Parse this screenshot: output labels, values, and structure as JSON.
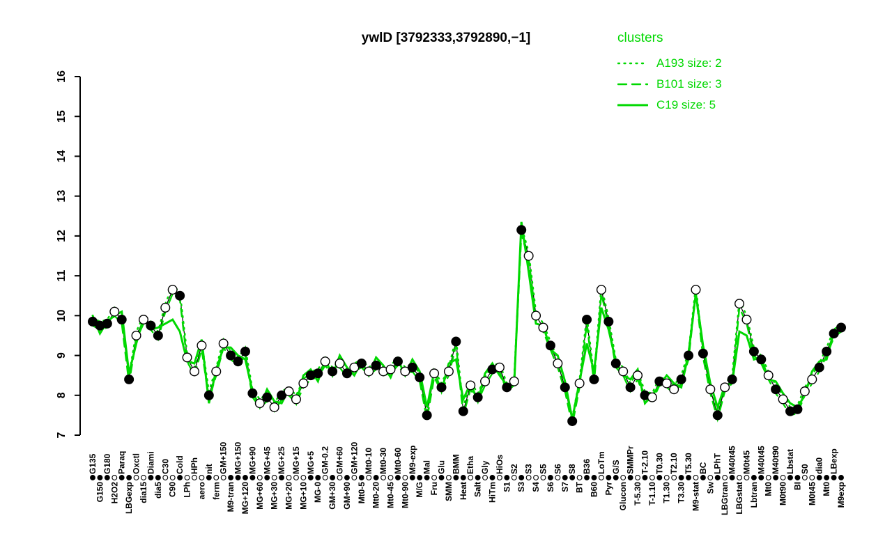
{
  "title": "ywlD [3792333,3792890,−1]",
  "legend": {
    "title": "clusters"
  },
  "colors": {
    "cluster_green": "#00d800",
    "series_black": "#000000",
    "background": "#ffffff"
  },
  "chart_data": {
    "type": "line",
    "title": "ywlD [3792333,3792890,−1]",
    "xlabel": "",
    "ylabel": "",
    "ylim": [
      7,
      16
    ],
    "yticks": [
      7,
      8,
      9,
      10,
      11,
      12,
      13,
      14,
      15,
      16
    ],
    "grid": false,
    "legend_position": "top-right",
    "categories": [
      "G135",
      "G150",
      "G180",
      "H2O2",
      "Paraq",
      "LBGexp",
      "Oxctl",
      "dia15",
      "Diami",
      "dia5",
      "C30",
      "C90",
      "Cold",
      "LPh",
      "HPh",
      "aero",
      "nit",
      "ferm",
      "GM+150",
      "M9-tran",
      "MG+150",
      "MG+120",
      "MG+90",
      "MG+60",
      "MG+45",
      "MG+30",
      "MG+25",
      "MG+20",
      "MG+15",
      "MG+10",
      "MG+5",
      "MG-0",
      "GM-0.2",
      "GM+30",
      "GM+60",
      "GM+90",
      "GM+120",
      "Mt0-5",
      "Mt0-10",
      "Mt0-20",
      "Mt0-30",
      "Mt0-45",
      "Mt0-60",
      "Mt0-90",
      "M9-exp",
      "M/G",
      "Mal",
      "Fru",
      "Glu",
      "SMM",
      "BMM",
      "Heat",
      "Etha",
      "Salt",
      "Gly",
      "HiTm",
      "HiOs",
      "S1",
      "S2",
      "S3",
      "S3",
      "S4",
      "S5",
      "S6",
      "S6",
      "S7",
      "S8",
      "BT",
      "B36",
      "B60",
      "LoTm",
      "Pyr",
      "G/S",
      "Glucon",
      "SMMPr",
      "T-5.30",
      "T-2.10",
      "T-1.10",
      "T0.30",
      "T1.30",
      "T2.10",
      "T3.30",
      "T5.30",
      "M9-stat",
      "BC",
      "Sw",
      "LPhT",
      "LBGtran",
      "M40t45",
      "LBGstat",
      "M0t45",
      "Lbtran",
      "M40t45",
      "Mt0",
      "M40t90",
      "M0t90",
      "Lbstat",
      "BI",
      "S0",
      "M0t45",
      "dia0",
      "Mt0",
      "LBexp",
      "M9exp"
    ],
    "marker_filled": [
      1,
      1,
      1,
      0,
      1,
      1,
      0,
      0,
      1,
      1,
      0,
      0,
      1,
      0,
      0,
      0,
      1,
      0,
      0,
      1,
      1,
      1,
      1,
      0,
      1,
      0,
      1,
      0,
      0,
      0,
      1,
      1,
      0,
      1,
      0,
      1,
      0,
      1,
      0,
      1,
      0,
      0,
      1,
      0,
      1,
      1,
      1,
      0,
      1,
      0,
      1,
      1,
      0,
      1,
      0,
      1,
      0,
      1,
      0,
      1,
      0,
      0,
      0,
      1,
      0,
      1,
      1,
      0,
      1,
      1,
      0,
      1,
      1,
      0,
      1,
      0,
      1,
      0,
      1,
      0,
      0,
      1,
      1,
      0,
      1,
      0,
      1,
      0,
      1,
      0,
      0,
      1,
      1,
      0,
      1,
      0,
      1,
      1,
      0,
      0,
      1,
      1,
      1,
      1
    ],
    "series": [
      {
        "name": "ywlD",
        "role": "gene-profile",
        "color": "#000000",
        "line": "solid",
        "marker": "circle",
        "values": [
          9.85,
          9.75,
          9.8,
          10.1,
          9.9,
          8.4,
          9.5,
          9.9,
          9.75,
          9.5,
          10.2,
          10.65,
          10.5,
          8.95,
          8.6,
          9.25,
          8.0,
          8.6,
          9.3,
          9.0,
          8.85,
          9.1,
          8.05,
          7.8,
          7.95,
          7.7,
          8.0,
          8.1,
          7.9,
          8.3,
          8.5,
          8.55,
          8.85,
          8.6,
          8.8,
          8.55,
          8.7,
          8.8,
          8.6,
          8.75,
          8.6,
          8.65,
          8.85,
          8.6,
          8.7,
          8.45,
          7.5,
          8.55,
          8.2,
          8.6,
          9.35,
          7.6,
          8.25,
          7.95,
          8.35,
          8.65,
          8.7,
          8.2,
          8.35,
          12.15,
          11.5,
          10.0,
          9.7,
          9.25,
          8.8,
          8.2,
          7.35,
          8.3,
          9.9,
          8.4,
          10.65,
          9.85,
          8.8,
          8.6,
          8.2,
          8.5,
          8.0,
          7.95,
          8.35,
          8.3,
          8.15,
          8.4,
          9.0,
          10.65,
          9.05,
          8.15,
          7.5,
          8.2,
          8.4,
          10.3,
          9.9,
          9.1,
          8.9,
          8.5,
          8.15,
          7.9,
          7.6,
          7.65,
          8.1,
          8.4,
          8.7,
          9.1,
          9.55,
          9.7
        ]
      },
      {
        "name": "A193 size: 2",
        "cluster": "A193",
        "size": 2,
        "color": "#00d800",
        "line": "dotted",
        "values": [
          9.95,
          9.85,
          9.9,
          10.2,
          10.0,
          8.5,
          9.6,
          10.0,
          9.85,
          9.6,
          10.3,
          10.75,
          10.6,
          9.05,
          8.7,
          9.35,
          8.1,
          8.7,
          9.4,
          9.1,
          8.95,
          9.2,
          8.15,
          7.9,
          8.05,
          7.8,
          8.1,
          8.2,
          8.0,
          8.4,
          8.6,
          8.65,
          8.95,
          8.7,
          8.9,
          8.65,
          8.8,
          8.9,
          8.7,
          8.85,
          8.7,
          8.75,
          8.95,
          8.7,
          8.8,
          8.55,
          7.6,
          8.65,
          8.3,
          8.7,
          9.45,
          7.7,
          8.35,
          8.05,
          8.45,
          8.75,
          8.8,
          8.3,
          8.45,
          12.25,
          11.6,
          10.1,
          9.8,
          9.35,
          8.9,
          8.3,
          7.45,
          8.4,
          10.0,
          8.5,
          10.75,
          9.95,
          8.9,
          8.7,
          8.3,
          8.6,
          8.1,
          8.05,
          8.45,
          8.4,
          8.25,
          8.5,
          9.1,
          10.75,
          9.15,
          8.25,
          7.6,
          8.3,
          8.5,
          10.4,
          10.0,
          9.2,
          9.0,
          8.6,
          8.25,
          8.0,
          7.7,
          7.75,
          8.2,
          8.5,
          8.8,
          9.2,
          9.65,
          9.8
        ]
      },
      {
        "name": "B101 size: 3",
        "cluster": "B101",
        "size": 3,
        "color": "#00d800",
        "line": "dashed",
        "values": [
          9.75,
          9.65,
          9.7,
          10.0,
          9.8,
          8.3,
          9.4,
          9.8,
          9.65,
          9.4,
          10.1,
          10.55,
          10.4,
          8.85,
          8.5,
          9.15,
          7.9,
          8.5,
          9.2,
          8.9,
          8.75,
          9.0,
          7.95,
          7.7,
          7.85,
          7.6,
          7.9,
          8.0,
          7.8,
          8.2,
          8.4,
          8.45,
          8.75,
          8.5,
          8.7,
          8.45,
          8.6,
          8.7,
          8.5,
          8.65,
          8.5,
          8.55,
          8.75,
          8.5,
          8.6,
          8.35,
          7.4,
          8.45,
          8.1,
          8.5,
          9.25,
          7.5,
          8.15,
          7.85,
          8.25,
          8.55,
          8.6,
          8.1,
          8.25,
          12.05,
          11.4,
          9.9,
          9.6,
          9.15,
          8.7,
          8.1,
          7.25,
          8.2,
          9.8,
          8.3,
          10.55,
          9.75,
          8.7,
          8.5,
          8.1,
          8.4,
          7.9,
          7.85,
          8.25,
          8.2,
          8.05,
          8.3,
          8.9,
          10.55,
          8.95,
          8.05,
          7.4,
          8.1,
          8.3,
          10.2,
          9.8,
          9.0,
          8.8,
          8.4,
          8.05,
          7.8,
          7.5,
          7.55,
          8.0,
          8.3,
          8.6,
          9.0,
          9.45,
          9.6
        ]
      },
      {
        "name": "C19 size: 5",
        "cluster": "C19",
        "size": 5,
        "color": "#00d800",
        "line": "solid",
        "values": [
          10.0,
          9.55,
          9.85,
          10.0,
          10.1,
          8.55,
          9.3,
          9.95,
          9.65,
          9.7,
          9.8,
          9.9,
          9.6,
          8.85,
          8.8,
          9.4,
          7.8,
          8.65,
          9.2,
          9.2,
          9.0,
          8.9,
          8.1,
          7.7,
          8.15,
          7.85,
          7.8,
          8.15,
          7.8,
          8.5,
          8.65,
          8.35,
          8.9,
          8.5,
          9.0,
          8.7,
          8.5,
          8.85,
          8.5,
          8.95,
          8.75,
          8.45,
          8.9,
          8.5,
          8.9,
          8.6,
          7.7,
          8.6,
          8.1,
          8.8,
          8.9,
          7.9,
          8.3,
          7.85,
          8.55,
          8.8,
          8.5,
          8.25,
          8.25,
          12.35,
          11.1,
          9.8,
          9.75,
          9.15,
          9.0,
          8.35,
          7.4,
          8.35,
          9.3,
          8.6,
          10.2,
          9.65,
          8.85,
          8.5,
          8.4,
          8.65,
          7.8,
          8.0,
          8.25,
          8.5,
          8.3,
          8.2,
          9.05,
          10.55,
          9.25,
          8.3,
          7.7,
          8.25,
          8.3,
          9.6,
          9.5,
          8.9,
          8.95,
          8.4,
          8.35,
          8.05,
          7.8,
          7.7,
          8.0,
          8.6,
          8.85,
          8.9,
          9.6,
          9.6
        ]
      }
    ]
  }
}
